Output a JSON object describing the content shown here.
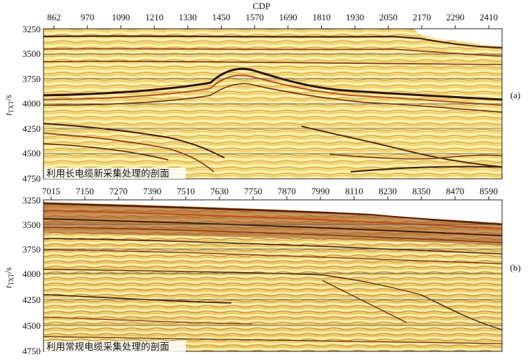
{
  "axis_title_top": "CDP",
  "panels": [
    {
      "id": "a",
      "label": "(a)",
      "caption": "利用长电缆新采集处理的剖面",
      "x_ticks": [
        "862",
        "970",
        "1090",
        "1210",
        "1330",
        "1450",
        "1570",
        "1690",
        "1810",
        "1930",
        "2050",
        "2170",
        "2290",
        "2410"
      ],
      "y_ticks": [
        "3250",
        "3500",
        "3750",
        "4000",
        "4250",
        "4500",
        "4750"
      ],
      "y_label_main": "t",
      "y_label_sub": "TXT",
      "y_label_unit": "/s"
    },
    {
      "id": "b",
      "label": "(b)",
      "caption": "利用常规电缆采集处理的剖面",
      "x_ticks": [
        "7015",
        "7150",
        "7270",
        "7390",
        "7510",
        "7630",
        "7750",
        "7870",
        "7990",
        "8110",
        "8230",
        "8350",
        "8470",
        "8590"
      ],
      "y_ticks": [
        "3250",
        "3500",
        "3750",
        "4000",
        "4250",
        "4500",
        "4750"
      ],
      "y_label_main": "t",
      "y_label_sub": "TXT",
      "y_label_unit": "/s"
    }
  ],
  "colors": {
    "seismic_base": "#f4e07a",
    "seismic_light": "#fdf6c4",
    "seismic_peak": "#b8552a",
    "seismic_dark": "#3a1a10",
    "gridline": "#555555"
  }
}
